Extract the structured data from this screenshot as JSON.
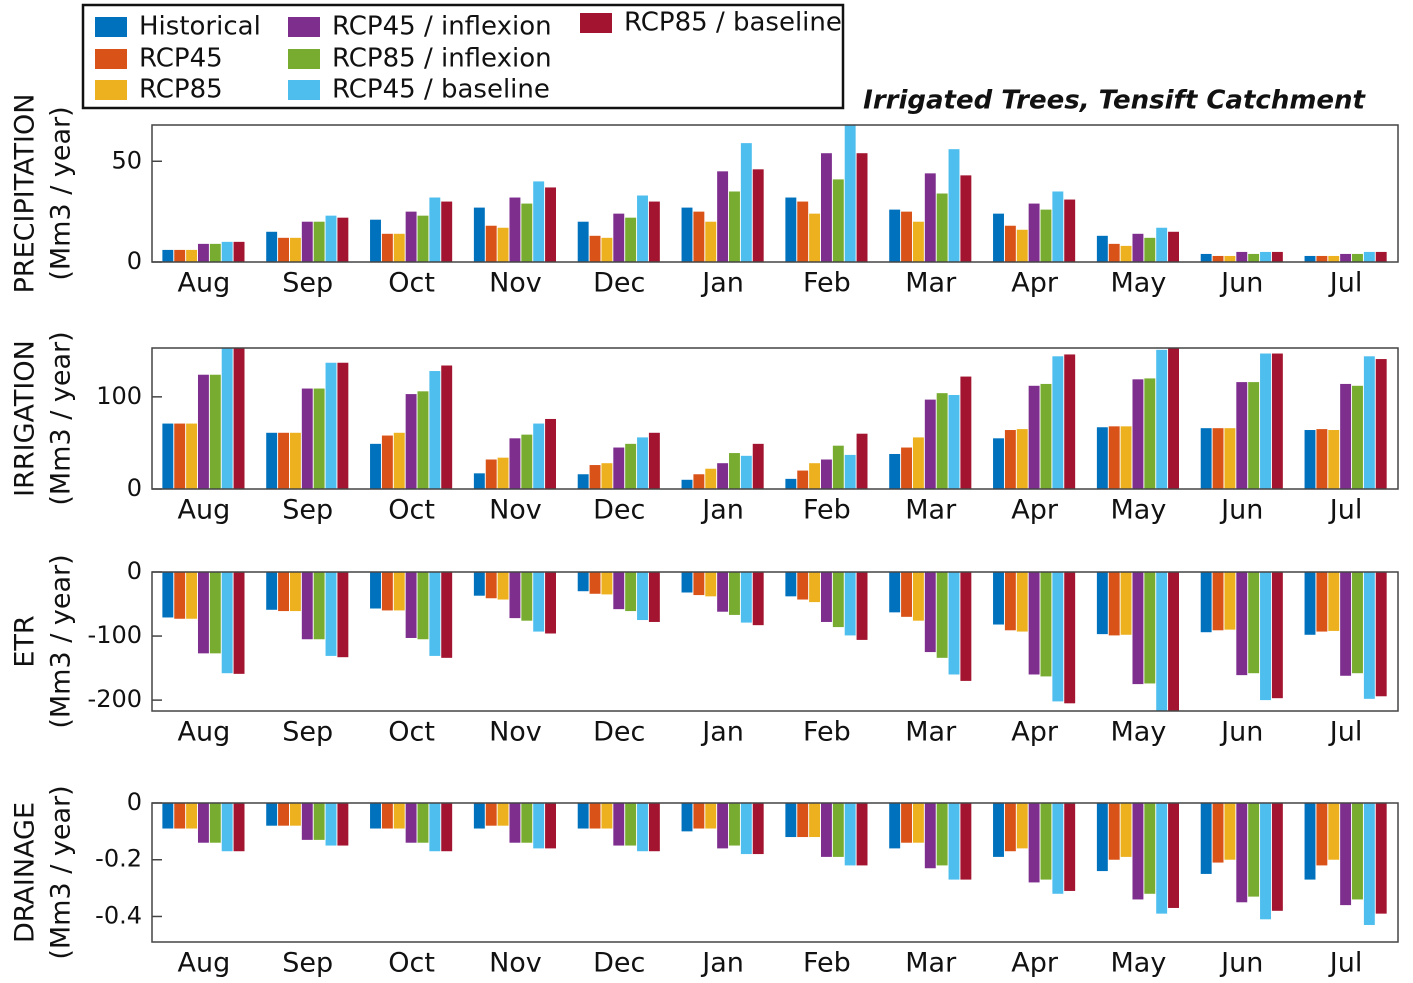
{
  "chart_data": [
    {
      "type": "bar",
      "title": "Irrigated Trees, Tensift Catchment",
      "ylabel": [
        "PRECIPITATION",
        "(Mm3 / year)"
      ],
      "categories": [
        "Aug",
        "Sep",
        "Oct",
        "Nov",
        "Dec",
        "Jan",
        "Feb",
        "Mar",
        "Apr",
        "May",
        "Jun",
        "Jul"
      ],
      "ylim": [
        0,
        68
      ],
      "yticks": [
        0,
        50
      ],
      "series": [
        {
          "name": "Historical",
          "color": "#0072BD",
          "values": [
            6,
            15,
            21,
            27,
            20,
            27,
            32,
            26,
            24,
            13,
            4,
            3
          ]
        },
        {
          "name": "RCP45",
          "color": "#D95319",
          "values": [
            6,
            12,
            14,
            18,
            13,
            25,
            30,
            25,
            18,
            9,
            3,
            3
          ]
        },
        {
          "name": "RCP85",
          "color": "#EDB120",
          "values": [
            6,
            12,
            14,
            17,
            12,
            20,
            24,
            20,
            16,
            8,
            3,
            3
          ]
        },
        {
          "name": "RCP45 / inflexion",
          "color": "#7E2F8E",
          "values": [
            9,
            20,
            25,
            32,
            24,
            45,
            54,
            44,
            29,
            14,
            5,
            4
          ]
        },
        {
          "name": "RCP85 / inflexion",
          "color": "#77AC30",
          "values": [
            9,
            20,
            23,
            29,
            22,
            35,
            41,
            34,
            26,
            12,
            4,
            4
          ]
        },
        {
          "name": "RCP45 / baseline",
          "color": "#4DBEEE",
          "values": [
            10,
            23,
            32,
            40,
            33,
            59,
            70,
            56,
            35,
            17,
            5,
            5
          ]
        },
        {
          "name": "RCP85 / baseline",
          "color": "#A2142F",
          "values": [
            10,
            22,
            30,
            37,
            30,
            46,
            54,
            43,
            31,
            15,
            5,
            5
          ]
        }
      ]
    },
    {
      "type": "bar",
      "ylabel": [
        "IRRIGATION",
        "(Mm3 / year)"
      ],
      "categories": [
        "Aug",
        "Sep",
        "Oct",
        "Nov",
        "Dec",
        "Jan",
        "Feb",
        "Mar",
        "Apr",
        "May",
        "Jun",
        "Jul"
      ],
      "ylim": [
        0,
        153
      ],
      "yticks": [
        0,
        100
      ],
      "series": [
        {
          "color": "#0072BD",
          "values": [
            71,
            61,
            49,
            17,
            16,
            10,
            11,
            38,
            55,
            67,
            66,
            64
          ]
        },
        {
          "color": "#D95319",
          "values": [
            71,
            61,
            58,
            32,
            26,
            16,
            20,
            45,
            64,
            68,
            66,
            65
          ]
        },
        {
          "color": "#EDB120",
          "values": [
            71,
            61,
            61,
            34,
            28,
            22,
            28,
            56,
            65,
            68,
            66,
            64
          ]
        },
        {
          "color": "#7E2F8E",
          "values": [
            124,
            109,
            103,
            55,
            45,
            28,
            32,
            97,
            112,
            119,
            116,
            114
          ]
        },
        {
          "color": "#77AC30",
          "values": [
            124,
            109,
            106,
            59,
            49,
            39,
            47,
            104,
            114,
            120,
            116,
            112
          ]
        },
        {
          "color": "#4DBEEE",
          "values": [
            158,
            137,
            128,
            71,
            56,
            36,
            37,
            102,
            144,
            151,
            147,
            144
          ]
        },
        {
          "color": "#A2142F",
          "values": [
            160,
            137,
            134,
            76,
            61,
            49,
            60,
            122,
            146,
            153,
            147,
            141
          ]
        }
      ]
    },
    {
      "type": "bar",
      "ylabel": [
        "ETR",
        "(Mm3 / year)"
      ],
      "categories": [
        "Aug",
        "Sep",
        "Oct",
        "Nov",
        "Dec",
        "Jan",
        "Feb",
        "Mar",
        "Apr",
        "May",
        "Jun",
        "Jul"
      ],
      "ylim": [
        -217,
        0
      ],
      "yticks": [
        -200,
        -100,
        0
      ],
      "series": [
        {
          "color": "#0072BD",
          "values": [
            -71,
            -59,
            -57,
            -37,
            -30,
            -32,
            -38,
            -63,
            -82,
            -97,
            -94,
            -98
          ]
        },
        {
          "color": "#D95319",
          "values": [
            -73,
            -61,
            -60,
            -41,
            -34,
            -36,
            -43,
            -70,
            -91,
            -99,
            -91,
            -93
          ]
        },
        {
          "color": "#EDB120",
          "values": [
            -73,
            -61,
            -60,
            -43,
            -35,
            -38,
            -47,
            -76,
            -93,
            -98,
            -90,
            -92
          ]
        },
        {
          "color": "#7E2F8E",
          "values": [
            -127,
            -105,
            -103,
            -72,
            -58,
            -62,
            -78,
            -125,
            -160,
            -175,
            -161,
            -162
          ]
        },
        {
          "color": "#77AC30",
          "values": [
            -127,
            -105,
            -105,
            -76,
            -61,
            -67,
            -86,
            -134,
            -163,
            -174,
            -158,
            -158
          ]
        },
        {
          "color": "#4DBEEE",
          "values": [
            -158,
            -131,
            -131,
            -93,
            -75,
            -79,
            -99,
            -160,
            -202,
            -220,
            -200,
            -198
          ]
        },
        {
          "color": "#A2142F",
          "values": [
            -159,
            -133,
            -134,
            -96,
            -78,
            -83,
            -106,
            -170,
            -205,
            -218,
            -197,
            -194
          ]
        }
      ]
    },
    {
      "type": "bar",
      "ylabel": [
        "DRAINAGE",
        "(Mm3 / year)"
      ],
      "categories": [
        "Aug",
        "Sep",
        "Oct",
        "Nov",
        "Dec",
        "Jan",
        "Feb",
        "Mar",
        "Apr",
        "May",
        "Jun",
        "Jul"
      ],
      "ylim": [
        -0.49,
        0
      ],
      "yticks": [
        -0.4,
        -0.2,
        0
      ],
      "series": [
        {
          "color": "#0072BD",
          "values": [
            -0.09,
            -0.08,
            -0.09,
            -0.09,
            -0.09,
            -0.1,
            -0.12,
            -0.16,
            -0.19,
            -0.24,
            -0.25,
            -0.27
          ]
        },
        {
          "color": "#D95319",
          "values": [
            -0.09,
            -0.08,
            -0.09,
            -0.08,
            -0.09,
            -0.09,
            -0.12,
            -0.14,
            -0.17,
            -0.2,
            -0.21,
            -0.22
          ]
        },
        {
          "color": "#EDB120",
          "values": [
            -0.09,
            -0.08,
            -0.09,
            -0.08,
            -0.09,
            -0.09,
            -0.12,
            -0.14,
            -0.16,
            -0.19,
            -0.2,
            -0.2
          ]
        },
        {
          "color": "#7E2F8E",
          "values": [
            -0.14,
            -0.13,
            -0.14,
            -0.14,
            -0.15,
            -0.16,
            -0.19,
            -0.23,
            -0.28,
            -0.34,
            -0.35,
            -0.36
          ]
        },
        {
          "color": "#77AC30",
          "values": [
            -0.14,
            -0.13,
            -0.14,
            -0.14,
            -0.15,
            -0.15,
            -0.19,
            -0.22,
            -0.27,
            -0.32,
            -0.33,
            -0.34
          ]
        },
        {
          "color": "#4DBEEE",
          "values": [
            -0.17,
            -0.15,
            -0.17,
            -0.16,
            -0.17,
            -0.18,
            -0.22,
            -0.27,
            -0.32,
            -0.39,
            -0.41,
            -0.43
          ]
        },
        {
          "color": "#A2142F",
          "values": [
            -0.17,
            -0.15,
            -0.17,
            -0.16,
            -0.17,
            -0.18,
            -0.22,
            -0.27,
            -0.31,
            -0.37,
            -0.38,
            -0.39
          ]
        }
      ]
    }
  ]
}
